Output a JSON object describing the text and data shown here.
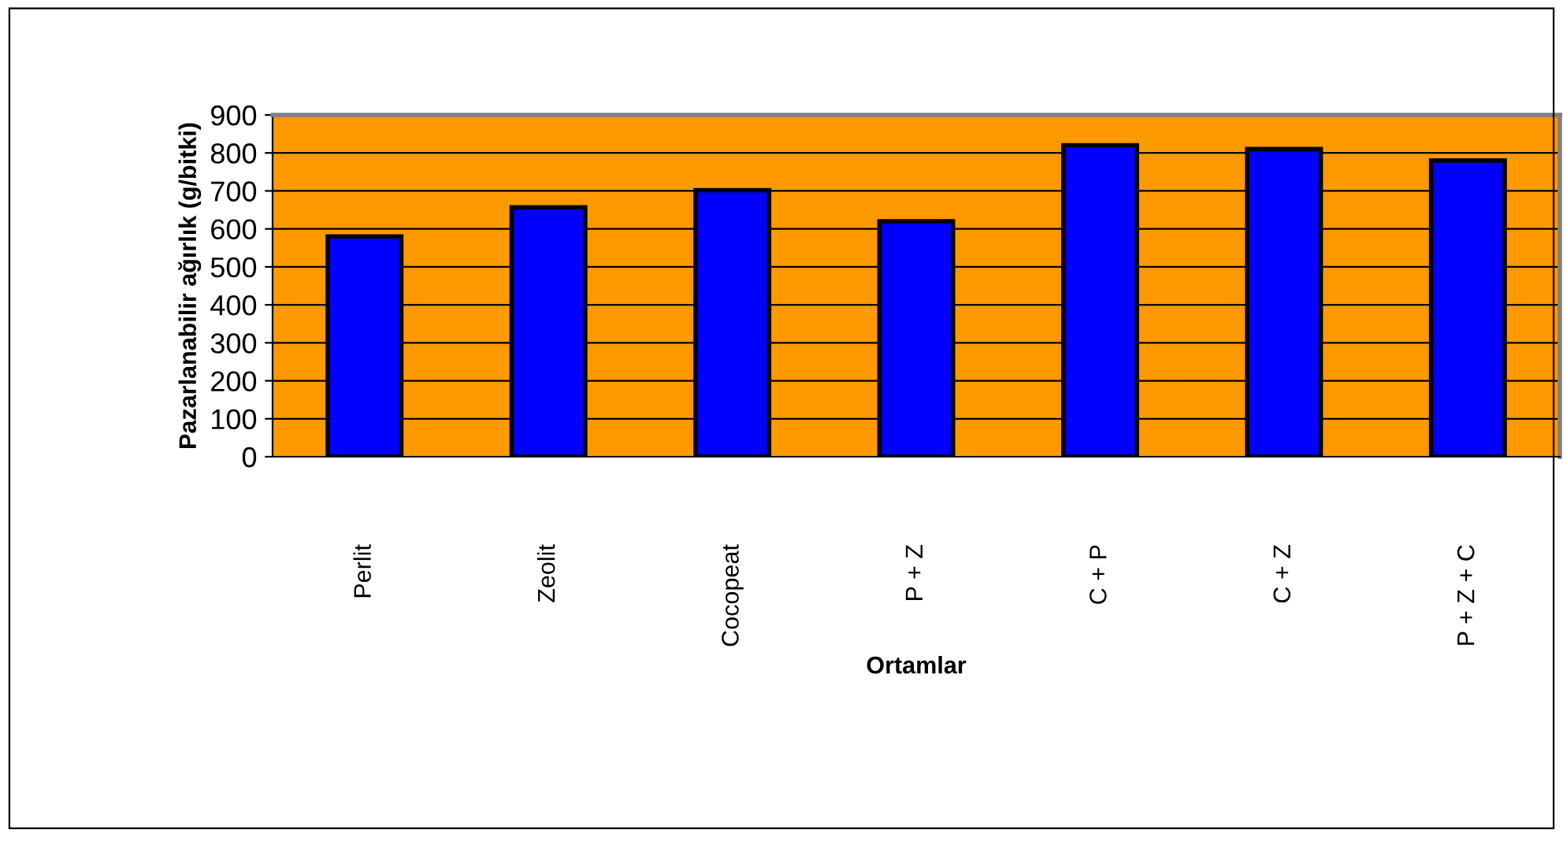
{
  "chart_data": {
    "type": "bar",
    "xlabel": "Ortamlar",
    "ylabel": "Pazarlanabilir ağırlık (g/bitki)",
    "categories": [
      "Perlit",
      "Zeolit",
      "Cocopeat",
      "P + Z",
      "C + P",
      "C + Z",
      "P + Z + C"
    ],
    "values": [
      580,
      657,
      702,
      620,
      820,
      810,
      780
    ],
    "color": "#0000ff",
    "ylim": [
      0,
      900
    ],
    "yticks": [
      0,
      100,
      200,
      300,
      400,
      500,
      600,
      700,
      800,
      900
    ],
    "grid": "y"
  }
}
